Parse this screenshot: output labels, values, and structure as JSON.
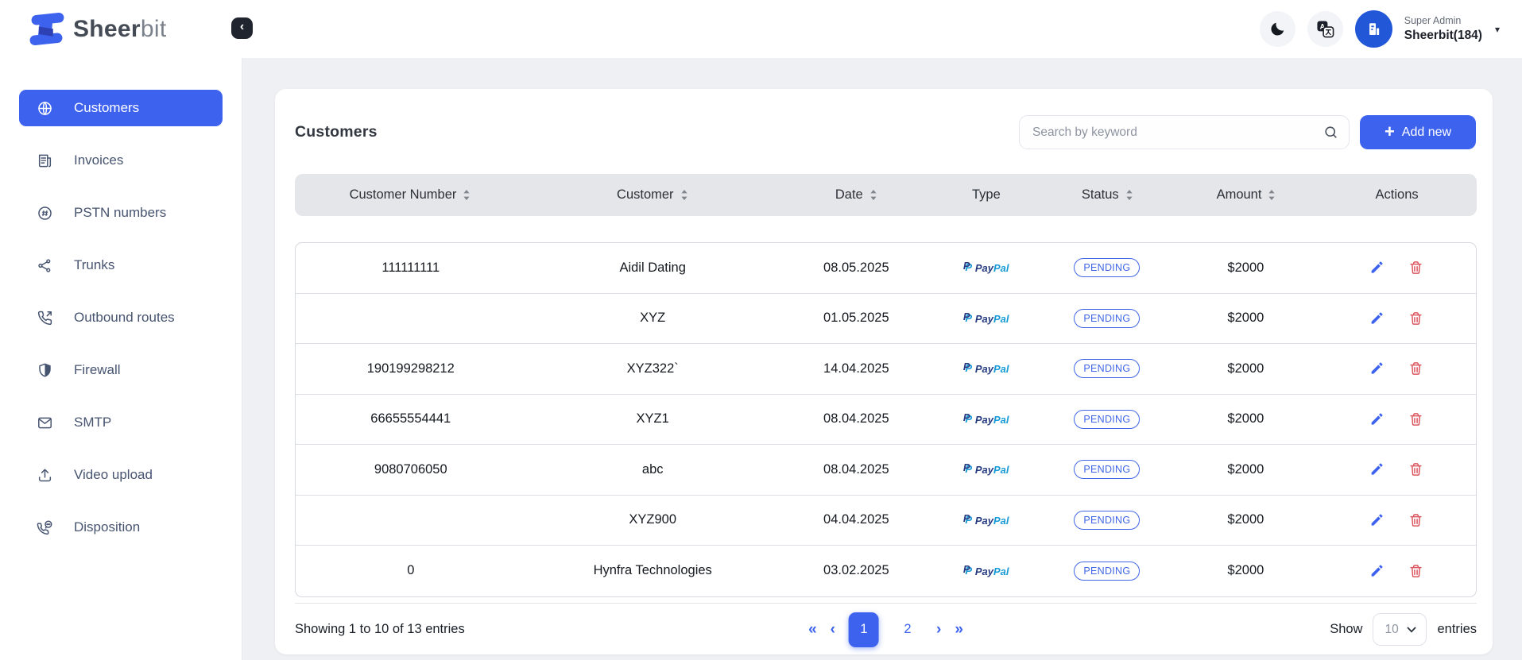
{
  "brand": {
    "name_primary": "Sheer",
    "name_secondary": "bit"
  },
  "header": {
    "role": "Super Admin",
    "account": "Sheerbit(184)",
    "icons": {
      "collapse": "‹",
      "caret": "▾"
    }
  },
  "sidebar": {
    "items": [
      {
        "label": "Customers",
        "icon": "globe",
        "active": true
      },
      {
        "label": "Invoices",
        "icon": "invoice",
        "active": false
      },
      {
        "label": "PSTN numbers",
        "icon": "hash-circle",
        "active": false
      },
      {
        "label": "Trunks",
        "icon": "share-network",
        "active": false
      },
      {
        "label": "Outbound routes",
        "icon": "phone-outgoing",
        "active": false
      },
      {
        "label": "Firewall",
        "icon": "shield",
        "active": false
      },
      {
        "label": "SMTP",
        "icon": "mail",
        "active": false
      },
      {
        "label": "Video upload",
        "icon": "upload",
        "active": false
      },
      {
        "label": "Disposition",
        "icon": "phone-chat",
        "active": false
      }
    ]
  },
  "page": {
    "title": "Customers",
    "search": {
      "placeholder": "Search by keyword"
    },
    "add_button": {
      "label": "Add new",
      "plus": "+"
    }
  },
  "table": {
    "columns": [
      {
        "label": "Customer Number",
        "sortable": true
      },
      {
        "label": "Customer",
        "sortable": true
      },
      {
        "label": "Date",
        "sortable": true
      },
      {
        "label": "Type",
        "sortable": false
      },
      {
        "label": "Status",
        "sortable": true
      },
      {
        "label": "Amount",
        "sortable": true
      },
      {
        "label": "Actions",
        "sortable": false
      }
    ],
    "payment_brand": {
      "mark": "P",
      "pay": "Pay",
      "pal": "Pal"
    },
    "rows": [
      {
        "customer_number": "111111111",
        "customer": "Aidil Dating",
        "date": "08.05.2025",
        "type": "PayPal",
        "status": "PENDING",
        "amount": "$2000"
      },
      {
        "customer_number": "",
        "customer": "XYZ",
        "date": "01.05.2025",
        "type": "PayPal",
        "status": "PENDING",
        "amount": "$2000"
      },
      {
        "customer_number": "190199298212",
        "customer": "XYZ322`",
        "date": "14.04.2025",
        "type": "PayPal",
        "status": "PENDING",
        "amount": "$2000"
      },
      {
        "customer_number": "66655554441",
        "customer": "XYZ1",
        "date": "08.04.2025",
        "type": "PayPal",
        "status": "PENDING",
        "amount": "$2000"
      },
      {
        "customer_number": "9080706050",
        "customer": "abc",
        "date": "08.04.2025",
        "type": "PayPal",
        "status": "PENDING",
        "amount": "$2000"
      },
      {
        "customer_number": "",
        "customer": "XYZ900",
        "date": "04.04.2025",
        "type": "PayPal",
        "status": "PENDING",
        "amount": "$2000"
      },
      {
        "customer_number": "0",
        "customer": "Hynfra Technologies",
        "date": "03.02.2025",
        "type": "PayPal",
        "status": "PENDING",
        "amount": "$2000"
      }
    ]
  },
  "footer": {
    "showing": "Showing 1 to 10 of 13 entries",
    "pagination": {
      "first": "«",
      "prev": "‹",
      "pages": [
        "1",
        "2"
      ],
      "active": "1",
      "next": "›",
      "last": "»"
    },
    "show_label": "Show",
    "page_size": "10",
    "entries_label": "entries"
  },
  "colors": {
    "accent": "#3d63ee",
    "pending": "#4066e5",
    "danger": "#dc5760",
    "header_row": "#e5e6e9"
  }
}
